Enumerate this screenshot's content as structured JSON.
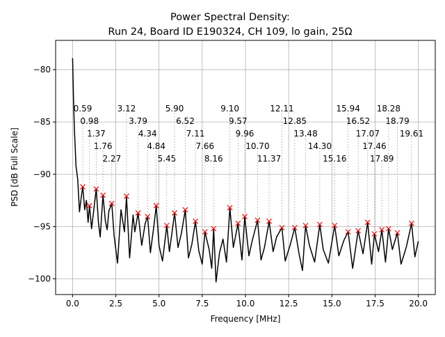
{
  "chart_data": {
    "type": "line",
    "title_line1": "Power Spectral Density:",
    "title_line2": "Run 24, Board ID E190324, CH 109, lo gain, 25Ω",
    "xlabel": "Frequency [MHz]",
    "ylabel": "PSD [dB Full Scale]",
    "xlim": [
      -0.98,
      20.98
    ],
    "ylim": [
      -101.5,
      -77.2
    ],
    "grid": true,
    "xticks": [
      0.0,
      2.5,
      5.0,
      7.5,
      10.0,
      12.5,
      15.0,
      17.5,
      20.0
    ],
    "xtick_labels": [
      "0.0",
      "2.5",
      "5.0",
      "7.5",
      "10.0",
      "12.5",
      "15.0",
      "17.5",
      "20.0"
    ],
    "yticks": [
      -80,
      -85,
      -90,
      -95,
      -100
    ],
    "ytick_labels": [
      "−80",
      "−85",
      "−90",
      "−95",
      "−100"
    ],
    "line_color": "#000000",
    "marker_color": "#ff0000",
    "series": {
      "x": [
        0,
        0.05,
        0.1,
        0.2,
        0.3,
        0.4,
        0.5,
        0.59,
        0.7,
        0.8,
        0.9,
        0.98,
        1.1,
        1.2,
        1.37,
        1.5,
        1.6,
        1.76,
        1.9,
        2.0,
        2.1,
        2.27,
        2.4,
        2.6,
        2.8,
        3.0,
        3.12,
        3.3,
        3.5,
        3.6,
        3.79,
        4.0,
        4.2,
        4.34,
        4.5,
        4.7,
        4.84,
        5.0,
        5.2,
        5.45,
        5.6,
        5.75,
        5.9,
        6.1,
        6.3,
        6.52,
        6.7,
        6.9,
        7.11,
        7.3,
        7.5,
        7.66,
        7.9,
        8.05,
        8.16,
        8.3,
        8.5,
        8.7,
        8.9,
        9.1,
        9.3,
        9.57,
        9.8,
        9.96,
        10.2,
        10.4,
        10.7,
        10.9,
        11.1,
        11.37,
        11.6,
        11.8,
        12.11,
        12.3,
        12.6,
        12.85,
        13.1,
        13.3,
        13.48,
        13.7,
        14.0,
        14.3,
        14.5,
        14.8,
        15.16,
        15.4,
        15.7,
        15.94,
        16.2,
        16.52,
        16.8,
        17.07,
        17.3,
        17.46,
        17.7,
        17.89,
        18.1,
        18.28,
        18.5,
        18.79,
        19.0,
        19.3,
        19.61,
        19.8,
        20.0
      ],
      "y": [
        -78.9,
        -82.5,
        -85.5,
        -89.2,
        -90.5,
        -93.6,
        -92.2,
        -91.2,
        -93.4,
        -92.5,
        -94.6,
        -93.0,
        -95.2,
        -93.8,
        -91.4,
        -94.7,
        -96.0,
        -92.0,
        -94.5,
        -95.3,
        -93.5,
        -92.8,
        -95.8,
        -98.5,
        -93.4,
        -95.5,
        -92.1,
        -98.0,
        -93.9,
        -95.5,
        -93.7,
        -96.8,
        -94.7,
        -94.05,
        -97.5,
        -95.0,
        -93.0,
        -96.8,
        -98.3,
        -94.9,
        -97.4,
        -95.6,
        -93.7,
        -97.0,
        -95.6,
        -93.4,
        -98.0,
        -96.7,
        -94.5,
        -97.3,
        -98.6,
        -95.5,
        -97.2,
        -99.0,
        -95.2,
        -100.3,
        -97.5,
        -96.2,
        -98.4,
        -93.2,
        -97.0,
        -94.7,
        -98.2,
        -94.05,
        -97.8,
        -96.3,
        -94.4,
        -98.2,
        -97.0,
        -94.5,
        -97.4,
        -96.0,
        -95.1,
        -98.3,
        -96.7,
        -95.1,
        -97.6,
        -99.2,
        -94.9,
        -96.8,
        -98.4,
        -94.8,
        -97.2,
        -98.5,
        -94.9,
        -97.8,
        -96.3,
        -95.5,
        -99.0,
        -95.4,
        -97.6,
        -94.6,
        -98.6,
        -95.7,
        -97.4,
        -95.3,
        -98.4,
        -95.2,
        -97.2,
        -95.6,
        -98.6,
        -97.0,
        -94.7,
        -97.9,
        -96.4
      ]
    },
    "peaks": [
      {
        "label": "0.59",
        "x": 0.59,
        "y": -91.2
      },
      {
        "label": "0.98",
        "x": 0.98,
        "y": -93.0
      },
      {
        "label": "1.37",
        "x": 1.37,
        "y": -91.4
      },
      {
        "label": "1.76",
        "x": 1.76,
        "y": -92.0
      },
      {
        "label": "2.27",
        "x": 2.27,
        "y": -92.8
      },
      {
        "label": "3.12",
        "x": 3.12,
        "y": -92.1
      },
      {
        "label": "3.79",
        "x": 3.79,
        "y": -93.7
      },
      {
        "label": "4.34",
        "x": 4.34,
        "y": -94.05
      },
      {
        "label": "4.84",
        "x": 4.84,
        "y": -93.0
      },
      {
        "label": "5.45",
        "x": 5.45,
        "y": -94.9
      },
      {
        "label": "5.90",
        "x": 5.9,
        "y": -93.7
      },
      {
        "label": "6.52",
        "x": 6.52,
        "y": -93.4
      },
      {
        "label": "7.11",
        "x": 7.11,
        "y": -94.5
      },
      {
        "label": "7.66",
        "x": 7.66,
        "y": -95.5
      },
      {
        "label": "8.16",
        "x": 8.16,
        "y": -95.2
      },
      {
        "label": "9.10",
        "x": 9.1,
        "y": -93.2
      },
      {
        "label": "9.57",
        "x": 9.57,
        "y": -94.7
      },
      {
        "label": "9.96",
        "x": 9.96,
        "y": -94.05
      },
      {
        "label": "10.70",
        "x": 10.7,
        "y": -94.4
      },
      {
        "label": "11.37",
        "x": 11.37,
        "y": -94.5
      },
      {
        "label": "12.11",
        "x": 12.11,
        "y": -95.1
      },
      {
        "label": "12.85",
        "x": 12.85,
        "y": -95.1
      },
      {
        "label": "13.48",
        "x": 13.48,
        "y": -94.9
      },
      {
        "label": "14.30",
        "x": 14.3,
        "y": -94.8
      },
      {
        "label": "15.16",
        "x": 15.16,
        "y": -94.9
      },
      {
        "label": "15.94",
        "x": 15.94,
        "y": -95.5
      },
      {
        "label": "16.52",
        "x": 16.52,
        "y": -95.4
      },
      {
        "label": "17.07",
        "x": 17.07,
        "y": -94.6
      },
      {
        "label": "17.46",
        "x": 17.46,
        "y": -95.7
      },
      {
        "label": "17.89",
        "x": 17.89,
        "y": -95.3
      },
      {
        "label": "18.28",
        "x": 18.28,
        "y": -95.2
      },
      {
        "label": "18.79",
        "x": 18.79,
        "y": -95.6
      },
      {
        "label": "19.61",
        "x": 19.61,
        "y": -94.7
      }
    ]
  }
}
